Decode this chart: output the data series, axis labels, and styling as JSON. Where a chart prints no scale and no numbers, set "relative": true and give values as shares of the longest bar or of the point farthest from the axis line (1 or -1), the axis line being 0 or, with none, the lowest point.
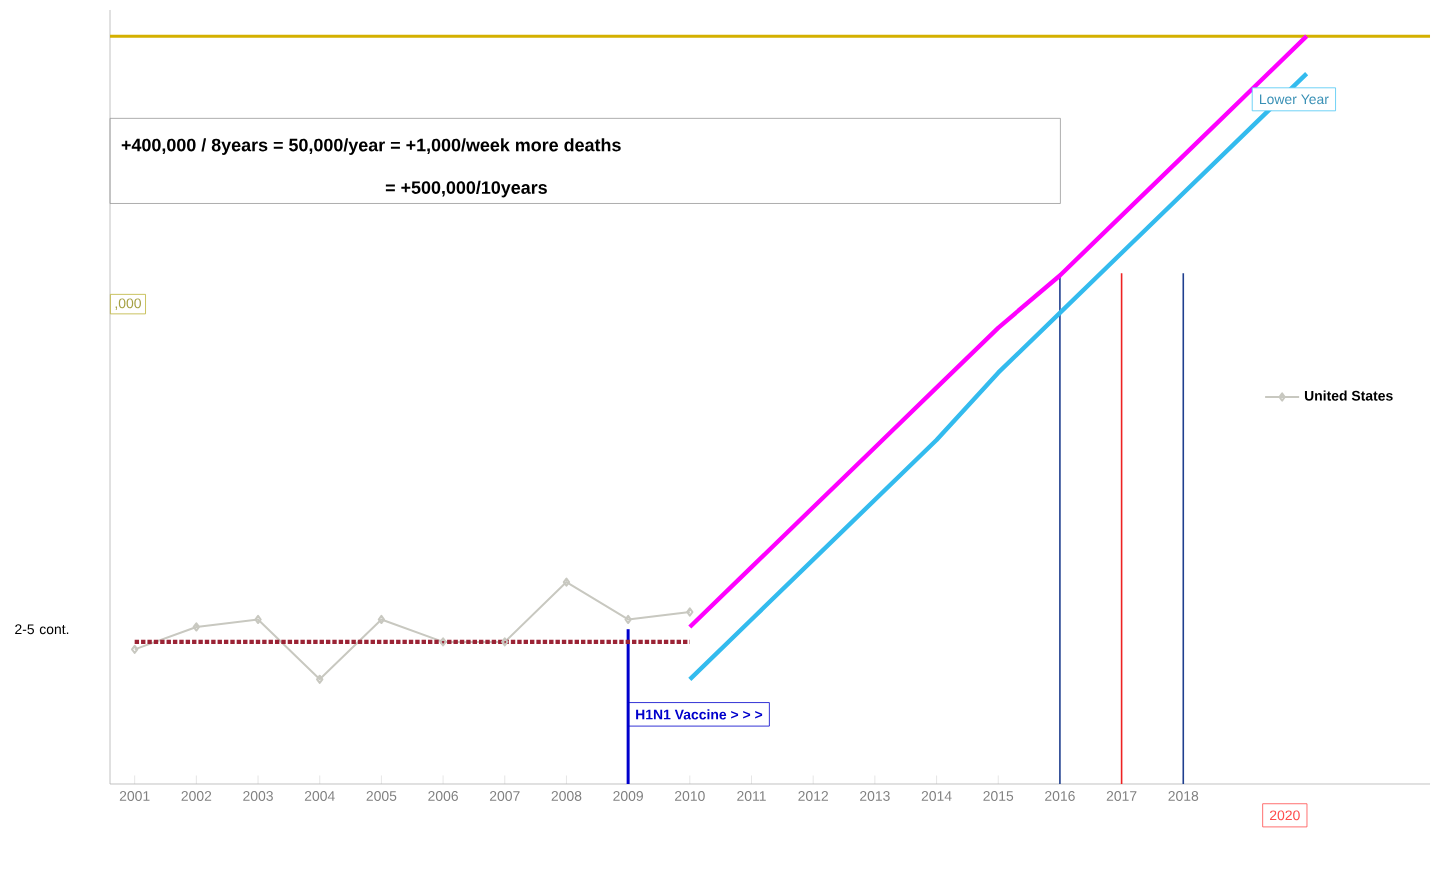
{
  "chart_data": {
    "type": "line",
    "relative": true,
    "x": [
      2001,
      2002,
      2003,
      2004,
      2005,
      2006,
      2007,
      2008,
      2009,
      2010,
      2011,
      2012,
      2013,
      2014,
      2015,
      2016,
      2017,
      2018,
      2019,
      2020
    ],
    "series": [
      {
        "name": "United States",
        "color": "#c8c8c0",
        "marker": "diamond",
        "values": [
          0.18,
          0.21,
          0.22,
          0.14,
          0.22,
          0.19,
          0.19,
          0.27,
          0.22,
          0.23,
          null,
          null,
          null,
          null,
          null,
          null,
          null,
          null,
          null,
          null
        ]
      },
      {
        "color": "#9b2335",
        "line_style": "dotted",
        "values": [
          0.19,
          0.19,
          0.19,
          0.19,
          0.19,
          0.19,
          0.19,
          0.19,
          0.19,
          0.19,
          null,
          null,
          null,
          null,
          null,
          null,
          null,
          null,
          null,
          null
        ]
      },
      {
        "color": "#ff00ff",
        "values": [
          null,
          null,
          null,
          null,
          null,
          null,
          null,
          null,
          null,
          0.21,
          0.29,
          0.37,
          0.45,
          0.53,
          0.61,
          0.68,
          0.76,
          0.84,
          0.92,
          1
        ]
      },
      {
        "color": "#33bbee",
        "values": [
          null,
          null,
          null,
          null,
          null,
          null,
          null,
          null,
          null,
          0.14,
          0.22,
          0.3,
          0.38,
          0.46,
          0.55,
          0.63,
          0.71,
          0.79,
          0.87,
          0.95
        ]
      }
    ],
    "xlim": [
      2000.6,
      2022
    ],
    "xticks": [
      2001,
      2002,
      2003,
      2004,
      2005,
      2006,
      2007,
      2008,
      2009,
      2010,
      2011,
      2012,
      2013,
      2014,
      2015,
      2016,
      2017,
      2018
    ],
    "ref_lines": [
      {
        "axis": "y",
        "value": 1,
        "color": "#d4b000"
      },
      {
        "axis": "x",
        "value": 2009,
        "color": "#0000cc",
        "label": "H1N1 Vaccine > > >"
      },
      {
        "axis": "x",
        "value": 2016,
        "color": "#1f3f8f"
      },
      {
        "axis": "x",
        "value": 2017,
        "color": "#ee2222"
      },
      {
        "axis": "x",
        "value": 2018,
        "color": "#1f3f8f"
      }
    ],
    "annotations": [
      "+400,000 / 8years = 50,000/year = +1,000/week more deaths",
      "= +500,000/10years",
      ",000",
      "2-5 cont.",
      "Lower Year",
      "2020"
    ],
    "legend": "right"
  }
}
